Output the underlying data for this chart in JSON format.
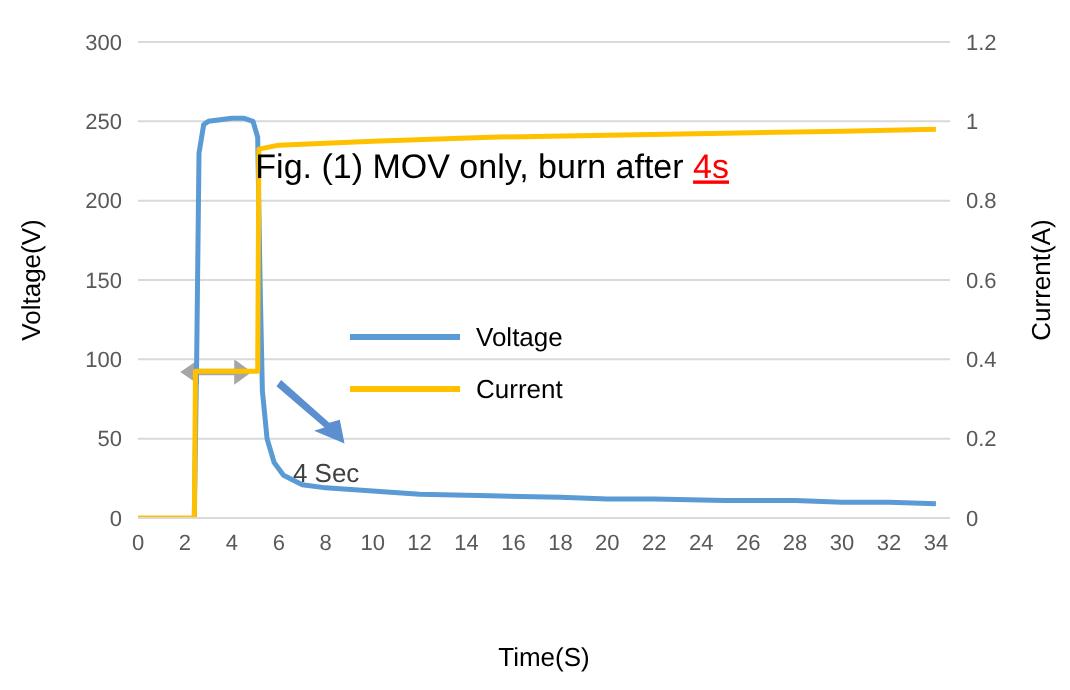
{
  "chart_data": {
    "type": "line",
    "xlabel": "Time(S)",
    "ylabel": "Voltage(V)",
    "y2label": "Current(A)",
    "annotations": [
      "Fig. (1) MOV only, burn after 4s",
      "4 Sec"
    ],
    "series": [
      {
        "name": "Voltage",
        "color": "#5b9bd5",
        "x": [
          2.4,
          2.5,
          2.6,
          2.8,
          3,
          3.5,
          4,
          4.5,
          4.9,
          5.1,
          5.2,
          5.3,
          5.5,
          5.8,
          6.2,
          7,
          8,
          10,
          12,
          15,
          18,
          20,
          22,
          25,
          28,
          30,
          32,
          34
        ],
        "values": [
          0,
          100,
          230,
          248,
          250,
          251,
          252,
          252,
          250,
          240,
          150,
          80,
          50,
          35,
          27,
          21,
          19,
          17,
          15,
          14,
          13,
          12,
          12,
          11,
          11,
          10,
          10,
          9
        ]
      },
      {
        "name": "Current",
        "color": "#ffc000",
        "axis": "y2",
        "x": [
          0,
          2.4,
          2.45,
          5.1,
          5.15,
          6,
          10,
          15,
          20,
          25,
          30,
          34
        ],
        "values": [
          0,
          0,
          0.37,
          0.37,
          0.93,
          0.94,
          0.95,
          0.96,
          0.965,
          0.97,
          0.975,
          0.98
        ]
      }
    ],
    "xlim": [
      0,
      34.6
    ],
    "xticks": [
      0,
      2,
      4,
      6,
      8,
      10,
      12,
      14,
      16,
      18,
      20,
      22,
      24,
      26,
      28,
      30,
      32,
      34
    ],
    "ylim": [
      0,
      300
    ],
    "yticks": [
      0,
      50,
      100,
      150,
      200,
      250,
      300
    ],
    "y2lim": [
      0,
      1.2
    ],
    "y2ticks": [
      0,
      0.2,
      0.4,
      0.6,
      0.8,
      1,
      1.2
    ],
    "grid": "y",
    "legend": "center",
    "marker": "none",
    "line_style": "solid"
  }
}
